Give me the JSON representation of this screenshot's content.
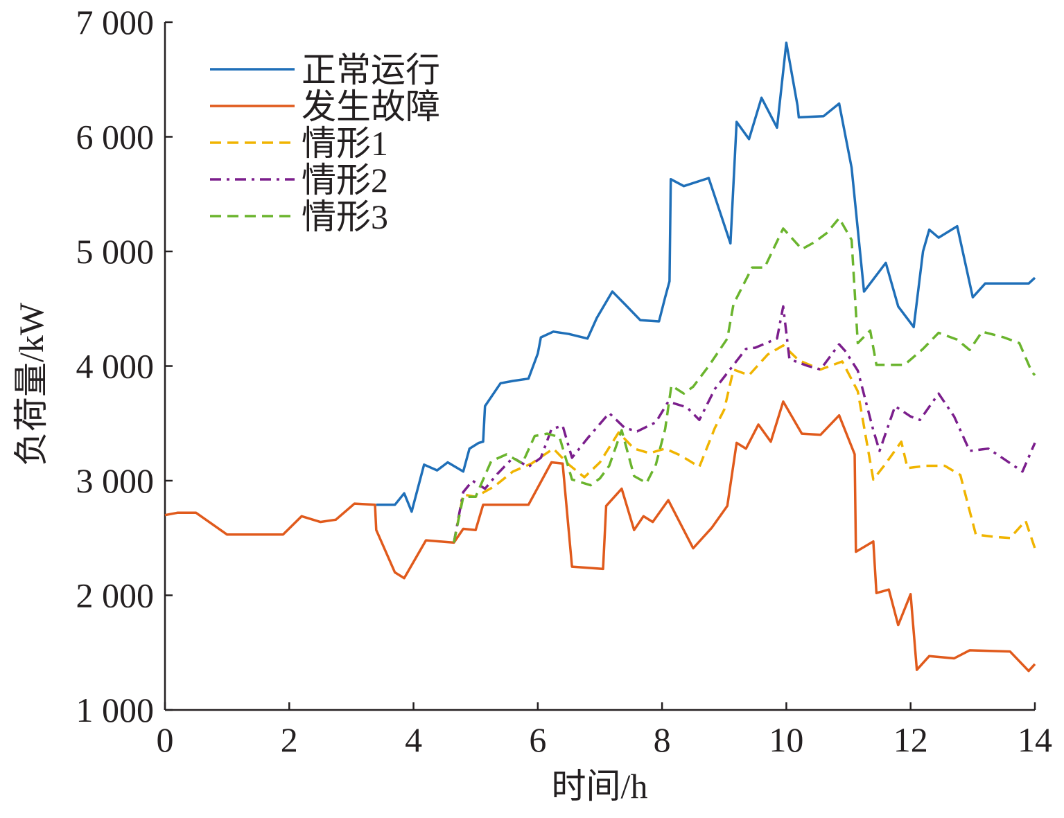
{
  "chart_data": {
    "type": "line",
    "xlabel": "时间/h",
    "ylabel": "负荷量/kW",
    "xlim": [
      0,
      14
    ],
    "ylim": [
      1000,
      7000
    ],
    "x_ticks": [
      0,
      2,
      4,
      6,
      8,
      10,
      12,
      14
    ],
    "x_tick_labels": [
      "0",
      "2",
      "4",
      "6",
      "8",
      "10",
      "12",
      "14"
    ],
    "y_ticks": [
      1000,
      2000,
      3000,
      4000,
      5000,
      6000,
      7000
    ],
    "y_tick_labels": [
      "1 000",
      "2 000",
      "3 000",
      "4 000",
      "5 000",
      "6 000",
      "7 000"
    ],
    "grid": false,
    "legend_position": "top-left",
    "series": [
      {
        "name": "正常运行",
        "color": "#1f6fb8",
        "dash": "solid",
        "points": [
          [
            3.4,
            2790
          ],
          [
            3.7,
            2790
          ],
          [
            3.85,
            2890
          ],
          [
            3.97,
            2730
          ],
          [
            4.17,
            3140
          ],
          [
            4.38,
            3090
          ],
          [
            4.55,
            3160
          ],
          [
            4.8,
            3080
          ],
          [
            4.9,
            3280
          ],
          [
            5.05,
            3330
          ],
          [
            5.12,
            3340
          ],
          [
            5.15,
            3650
          ],
          [
            5.4,
            3850
          ],
          [
            5.6,
            3870
          ],
          [
            5.85,
            3890
          ],
          [
            6.0,
            4110
          ],
          [
            6.05,
            4250
          ],
          [
            6.25,
            4300
          ],
          [
            6.5,
            4280
          ],
          [
            6.8,
            4240
          ],
          [
            6.95,
            4420
          ],
          [
            7.2,
            4650
          ],
          [
            7.4,
            4540
          ],
          [
            7.65,
            4400
          ],
          [
            7.95,
            4390
          ],
          [
            8.05,
            4600
          ],
          [
            8.12,
            4740
          ],
          [
            8.14,
            5630
          ],
          [
            8.35,
            5570
          ],
          [
            8.75,
            5640
          ],
          [
            9.1,
            5070
          ],
          [
            9.2,
            6130
          ],
          [
            9.4,
            5980
          ],
          [
            9.6,
            6340
          ],
          [
            9.85,
            6080
          ],
          [
            10.0,
            6820
          ],
          [
            10.18,
            6270
          ],
          [
            10.2,
            6170
          ],
          [
            10.6,
            6180
          ],
          [
            10.85,
            6290
          ],
          [
            11.05,
            5730
          ],
          [
            11.25,
            4650
          ],
          [
            11.6,
            4900
          ],
          [
            11.8,
            4520
          ],
          [
            12.05,
            4340
          ],
          [
            12.2,
            5000
          ],
          [
            12.3,
            5190
          ],
          [
            12.45,
            5120
          ],
          [
            12.75,
            5220
          ],
          [
            13.0,
            4600
          ],
          [
            13.2,
            4720
          ],
          [
            13.9,
            4720
          ],
          [
            14.0,
            4770
          ]
        ]
      },
      {
        "name": "发生故障",
        "color": "#e05a1c",
        "dash": "solid",
        "points": [
          [
            0,
            2700
          ],
          [
            0.2,
            2720
          ],
          [
            0.5,
            2720
          ],
          [
            1.0,
            2530
          ],
          [
            1.9,
            2530
          ],
          [
            2.2,
            2690
          ],
          [
            2.5,
            2640
          ],
          [
            2.75,
            2660
          ],
          [
            3.05,
            2800
          ],
          [
            3.38,
            2790
          ],
          [
            3.4,
            2570
          ],
          [
            3.7,
            2200
          ],
          [
            3.85,
            2150
          ],
          [
            4.2,
            2480
          ],
          [
            4.65,
            2460
          ],
          [
            4.8,
            2580
          ],
          [
            5.0,
            2570
          ],
          [
            5.12,
            2790
          ],
          [
            5.85,
            2790
          ],
          [
            6.22,
            3160
          ],
          [
            6.4,
            3150
          ],
          [
            6.55,
            2250
          ],
          [
            7.05,
            2230
          ],
          [
            7.1,
            2780
          ],
          [
            7.35,
            2930
          ],
          [
            7.55,
            2570
          ],
          [
            7.7,
            2690
          ],
          [
            7.85,
            2640
          ],
          [
            8.1,
            2830
          ],
          [
            8.5,
            2410
          ],
          [
            8.8,
            2590
          ],
          [
            9.05,
            2780
          ],
          [
            9.2,
            3330
          ],
          [
            9.35,
            3280
          ],
          [
            9.55,
            3490
          ],
          [
            9.75,
            3340
          ],
          [
            9.95,
            3690
          ],
          [
            10.25,
            3410
          ],
          [
            10.55,
            3400
          ],
          [
            10.85,
            3570
          ],
          [
            11.1,
            3230
          ],
          [
            11.12,
            2380
          ],
          [
            11.4,
            2470
          ],
          [
            11.45,
            2020
          ],
          [
            11.65,
            2050
          ],
          [
            11.8,
            1740
          ],
          [
            12.0,
            2010
          ],
          [
            12.1,
            1350
          ],
          [
            12.3,
            1470
          ],
          [
            12.7,
            1450
          ],
          [
            12.95,
            1520
          ],
          [
            13.6,
            1510
          ],
          [
            13.9,
            1340
          ],
          [
            14.0,
            1400
          ]
        ]
      },
      {
        "name": "情形1",
        "color": "#f0b400",
        "dash": "dashed",
        "points": [
          [
            4.65,
            2460
          ],
          [
            4.8,
            2880
          ],
          [
            5.0,
            2860
          ],
          [
            5.3,
            2950
          ],
          [
            5.6,
            3080
          ],
          [
            5.9,
            3150
          ],
          [
            6.25,
            3280
          ],
          [
            6.5,
            3140
          ],
          [
            6.75,
            3030
          ],
          [
            7.0,
            3160
          ],
          [
            7.3,
            3420
          ],
          [
            7.55,
            3280
          ],
          [
            7.8,
            3240
          ],
          [
            8.05,
            3280
          ],
          [
            8.3,
            3220
          ],
          [
            8.6,
            3120
          ],
          [
            8.85,
            3460
          ],
          [
            9.0,
            3620
          ],
          [
            9.15,
            3970
          ],
          [
            9.4,
            3920
          ],
          [
            9.7,
            4100
          ],
          [
            9.95,
            4180
          ],
          [
            10.2,
            4050
          ],
          [
            10.55,
            3970
          ],
          [
            10.9,
            4040
          ],
          [
            11.15,
            3780
          ],
          [
            11.4,
            3010
          ],
          [
            11.6,
            3150
          ],
          [
            11.85,
            3340
          ],
          [
            11.95,
            3110
          ],
          [
            12.25,
            3130
          ],
          [
            12.55,
            3130
          ],
          [
            12.8,
            3050
          ],
          [
            13.05,
            2530
          ],
          [
            13.35,
            2510
          ],
          [
            13.6,
            2500
          ],
          [
            13.85,
            2650
          ],
          [
            14.0,
            2410
          ]
        ]
      },
      {
        "name": "情形2",
        "color": "#7b1e8c",
        "dash": "dashdot",
        "points": [
          [
            4.65,
            2460
          ],
          [
            4.8,
            2900
          ],
          [
            4.95,
            3000
          ],
          [
            5.15,
            2930
          ],
          [
            5.35,
            3060
          ],
          [
            5.6,
            3200
          ],
          [
            5.85,
            3120
          ],
          [
            6.05,
            3200
          ],
          [
            6.22,
            3450
          ],
          [
            6.4,
            3480
          ],
          [
            6.55,
            3200
          ],
          [
            6.8,
            3370
          ],
          [
            7.15,
            3590
          ],
          [
            7.4,
            3460
          ],
          [
            7.6,
            3430
          ],
          [
            7.9,
            3510
          ],
          [
            8.1,
            3690
          ],
          [
            8.4,
            3640
          ],
          [
            8.6,
            3530
          ],
          [
            8.85,
            3800
          ],
          [
            9.05,
            3940
          ],
          [
            9.35,
            4150
          ],
          [
            9.5,
            4160
          ],
          [
            9.85,
            4240
          ],
          [
            9.95,
            4520
          ],
          [
            10.05,
            4060
          ],
          [
            10.35,
            4000
          ],
          [
            10.55,
            3970
          ],
          [
            10.85,
            4190
          ],
          [
            10.95,
            4130
          ],
          [
            11.15,
            3960
          ],
          [
            11.4,
            3440
          ],
          [
            11.5,
            3260
          ],
          [
            11.75,
            3650
          ],
          [
            12.0,
            3560
          ],
          [
            12.15,
            3530
          ],
          [
            12.45,
            3760
          ],
          [
            12.7,
            3560
          ],
          [
            12.95,
            3260
          ],
          [
            13.25,
            3280
          ],
          [
            13.5,
            3190
          ],
          [
            13.8,
            3080
          ],
          [
            14.0,
            3330
          ]
        ]
      },
      {
        "name": "情形3",
        "color": "#6ab42d",
        "dash": "dashed",
        "points": [
          [
            4.65,
            2460
          ],
          [
            4.8,
            2860
          ],
          [
            5.0,
            2860
          ],
          [
            5.25,
            3170
          ],
          [
            5.5,
            3230
          ],
          [
            5.75,
            3150
          ],
          [
            5.95,
            3390
          ],
          [
            6.15,
            3410
          ],
          [
            6.35,
            3380
          ],
          [
            6.55,
            3010
          ],
          [
            6.85,
            2960
          ],
          [
            7.0,
            3020
          ],
          [
            7.15,
            3130
          ],
          [
            7.35,
            3440
          ],
          [
            7.55,
            3040
          ],
          [
            7.75,
            2980
          ],
          [
            7.9,
            3140
          ],
          [
            8.05,
            3450
          ],
          [
            8.15,
            3830
          ],
          [
            8.35,
            3760
          ],
          [
            8.5,
            3820
          ],
          [
            8.75,
            4000
          ],
          [
            9.05,
            4240
          ],
          [
            9.15,
            4540
          ],
          [
            9.45,
            4860
          ],
          [
            9.65,
            4860
          ],
          [
            9.95,
            5200
          ],
          [
            10.25,
            5020
          ],
          [
            10.45,
            5080
          ],
          [
            10.65,
            5160
          ],
          [
            10.85,
            5290
          ],
          [
            11.05,
            5100
          ],
          [
            11.15,
            4200
          ],
          [
            11.35,
            4310
          ],
          [
            11.45,
            4010
          ],
          [
            11.9,
            4010
          ],
          [
            12.2,
            4150
          ],
          [
            12.45,
            4290
          ],
          [
            12.75,
            4230
          ],
          [
            12.95,
            4140
          ],
          [
            13.15,
            4300
          ],
          [
            13.5,
            4250
          ],
          [
            13.75,
            4200
          ],
          [
            13.95,
            3950
          ],
          [
            14.0,
            3920
          ]
        ]
      }
    ]
  }
}
